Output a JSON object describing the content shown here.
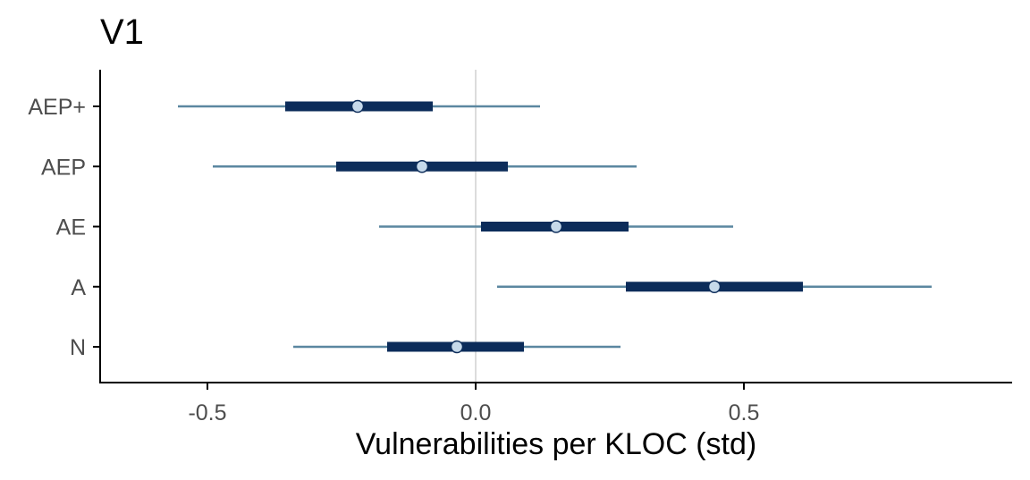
{
  "chart_data": {
    "type": "interval",
    "title": "V1",
    "xlabel": "Vulnerabilities per KLOC (std)",
    "ylabel": "",
    "xlim": [
      -0.7,
      1.0
    ],
    "x_ticks": [
      -0.5,
      0.0,
      0.5
    ],
    "x_tick_labels": [
      "-0.5",
      "0.0",
      "0.5"
    ],
    "reference_line": 0.0,
    "grid": false,
    "categories": [
      "AEP+",
      "AEP",
      "AE",
      "A",
      "N"
    ],
    "series": [
      {
        "category": "AEP+",
        "point": -0.22,
        "inner": [
          -0.355,
          -0.08
        ],
        "outer": [
          -0.555,
          0.12
        ]
      },
      {
        "category": "AEP",
        "point": -0.1,
        "inner": [
          -0.26,
          0.06
        ],
        "outer": [
          -0.49,
          0.3
        ]
      },
      {
        "category": "AE",
        "point": 0.15,
        "inner": [
          0.01,
          0.285
        ],
        "outer": [
          -0.18,
          0.48
        ]
      },
      {
        "category": "A",
        "point": 0.445,
        "inner": [
          0.28,
          0.61
        ],
        "outer": [
          0.04,
          0.85
        ]
      },
      {
        "category": "N",
        "point": -0.035,
        "inner": [
          -0.165,
          0.09
        ],
        "outer": [
          -0.34,
          0.27
        ]
      }
    ],
    "colors": {
      "outer_interval": "#5b87a0",
      "inner_interval": "#0c2c5a",
      "point_fill": "#c6d9ea",
      "point_stroke": "#0c2c5a",
      "reference_line": "#dcdcdc",
      "axis": "#000000",
      "tick_label": "#4d4d4d"
    }
  }
}
